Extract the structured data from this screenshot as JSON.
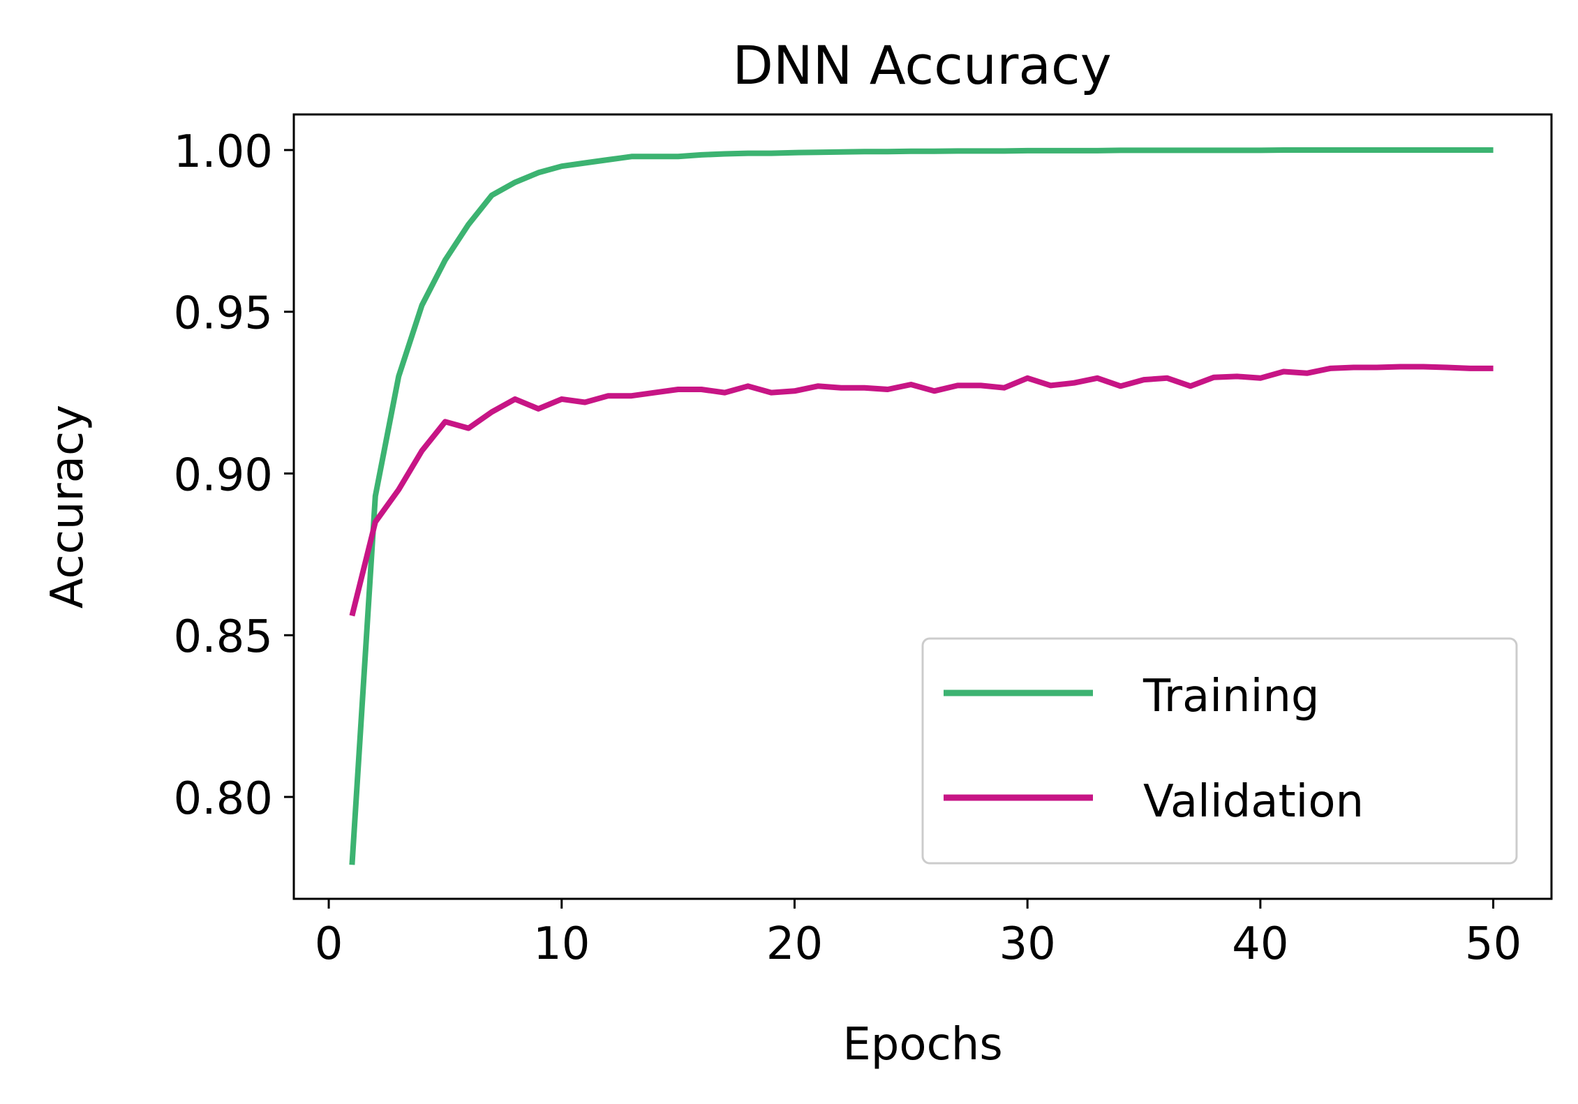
{
  "chart_data": {
    "type": "line",
    "title": "DNN Accuracy",
    "xlabel": "Epochs",
    "ylabel": "Accuracy",
    "xlim": [
      -1.5,
      52.5
    ],
    "ylim": [
      0.7685,
      1.011
    ],
    "xticks": [
      0,
      10,
      20,
      30,
      40,
      50
    ],
    "xtick_labels": [
      "0",
      "10",
      "20",
      "30",
      "40",
      "50"
    ],
    "yticks": [
      0.8,
      0.85,
      0.9,
      0.95,
      1.0
    ],
    "ytick_labels": [
      "0.80",
      "0.85",
      "0.90",
      "0.95",
      "1.00"
    ],
    "grid": false,
    "legend_position": "lower-right",
    "x": [
      1,
      2,
      3,
      4,
      5,
      6,
      7,
      8,
      9,
      10,
      11,
      12,
      13,
      14,
      15,
      16,
      17,
      18,
      19,
      20,
      21,
      22,
      23,
      24,
      25,
      26,
      27,
      28,
      29,
      30,
      31,
      32,
      33,
      34,
      35,
      36,
      37,
      38,
      39,
      40,
      41,
      42,
      43,
      44,
      45,
      46,
      47,
      48,
      49,
      50
    ],
    "series": [
      {
        "name": "Training",
        "color": "#3cb371",
        "values": [
          0.779,
          0.893,
          0.93,
          0.952,
          0.966,
          0.977,
          0.986,
          0.99,
          0.993,
          0.995,
          0.996,
          0.997,
          0.998,
          0.998,
          0.998,
          0.9985,
          0.9988,
          0.999,
          0.999,
          0.9992,
          0.9993,
          0.9994,
          0.9995,
          0.9995,
          0.9996,
          0.9996,
          0.9997,
          0.9997,
          0.9997,
          0.9998,
          0.9998,
          0.9998,
          0.9998,
          0.9999,
          0.9999,
          0.9999,
          0.9999,
          0.9999,
          0.9999,
          0.9999,
          1.0,
          1.0,
          1.0,
          1.0,
          1.0,
          1.0,
          1.0,
          1.0,
          1.0,
          1.0
        ]
      },
      {
        "name": "Validation",
        "color": "#c71585",
        "values": [
          0.856,
          0.885,
          0.895,
          0.907,
          0.916,
          0.914,
          0.919,
          0.923,
          0.92,
          0.923,
          0.922,
          0.924,
          0.924,
          0.925,
          0.926,
          0.926,
          0.925,
          0.927,
          0.925,
          0.9255,
          0.927,
          0.9265,
          0.9265,
          0.926,
          0.9275,
          0.9255,
          0.9272,
          0.9272,
          0.9265,
          0.9295,
          0.9272,
          0.928,
          0.9295,
          0.927,
          0.929,
          0.9295,
          0.927,
          0.9297,
          0.93,
          0.9295,
          0.9315,
          0.931,
          0.9325,
          0.9328,
          0.9328,
          0.933,
          0.933,
          0.9328,
          0.9325,
          0.9325
        ]
      }
    ]
  }
}
